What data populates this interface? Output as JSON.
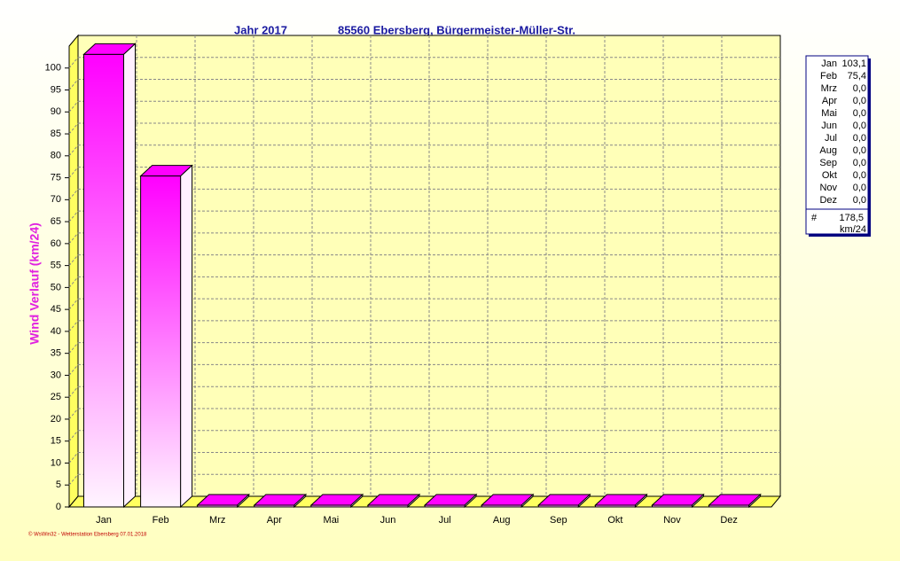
{
  "chart_data": {
    "type": "bar3d",
    "title": "Jahr  2017",
    "subtitle": "85560 Ebersberg, Bürgermeister-Müller-Str.",
    "y_label": "Wind Verlauf  (km/24)",
    "categories": [
      "Jan",
      "Feb",
      "Mrz",
      "Apr",
      "Mai",
      "Jun",
      "Jul",
      "Aug",
      "Sep",
      "Okt",
      "Nov",
      "Dez"
    ],
    "values": [
      103.1,
      75.4,
      0,
      0,
      0,
      0,
      0,
      0,
      0,
      0,
      0,
      0
    ],
    "value_labels": [
      "103,1",
      "75,4",
      "0,0",
      "0,0",
      "0,0",
      "0,0",
      "0,0",
      "0,0",
      "0,0",
      "0,0",
      "0,0",
      "0,0"
    ],
    "total": {
      "symbol": "#",
      "value": 178.5,
      "label": "178,5",
      "unit": "km/24"
    },
    "color": "#ff00ff",
    "ylim": [
      0,
      105
    ],
    "yticks": [
      0,
      5,
      10,
      15,
      20,
      25,
      30,
      35,
      40,
      45,
      50,
      55,
      60,
      65,
      70,
      75,
      80,
      85,
      90,
      95,
      100
    ],
    "grid": true,
    "footer": "© WsWin32 - Wetterstation Ebersberg  07.01.2018"
  }
}
